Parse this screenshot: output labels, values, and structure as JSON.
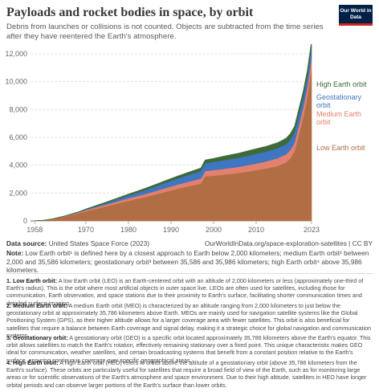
{
  "header": {
    "title": "Payloads and rocket bodies in space, by orbit",
    "subtitle": "Debris from launches or collisions is not counted. Objects are subtracted from the time series after they have reentered the Earth's atmosphere.",
    "logo": "Our World in Data"
  },
  "footer": {
    "source_label": "Data source:",
    "source_text": "United States Space Force (2023)",
    "source_url": "OurWorldInData.org/space-exploration-satellites | CC BY",
    "note_label": "Note:",
    "note_text": "Low Earth orbit¹ is defined here by a closest approach to Earth below 2,000 kilometers; medium Earth orbit² between 2,000 and 35,586 kilometers; geostationary orbit³ between 35,586 and 35,986 kilometers; high Earth orbit⁴ above 35,986 kilometers."
  },
  "footnotes": [
    {
      "label": "1. Low Earth orbit:",
      "text": "A low Earth orbit (LEO) is an Earth-centered orbit with an altitude of 2,000 kilometers or less (approximately one-third of Earth's radius). This is the orbit where most artificial objects in outer space live. LEOs are often used for satellites, including those for communication, Earth observation, and space stations due to their proximity to Earth's surface, facilitating shorter communication times and detailed surface imaging."
    },
    {
      "label": "2. Medium Earth orbit:",
      "text": "A medium Earth orbit (MEO) is characterized by an altitude ranging from 2,000 kilometers to just below the geostationary orbit at approximately 35,786 kilometers above Earth. MEOs are mainly used for navigation satellite systems like the Global Positioning System (GPS), as their higher altitude allows for a larger coverage area with fewer satellites. This orbit is also beneficial for satellites that require a balance between Earth coverage and signal delay, making it a strategic choice for global navigation and communication systems."
    },
    {
      "label": "3. Geostationary orbit:",
      "text": "A geostationary orbit (GEO) is a specific orbit located approximately 35,786 kilometers above the Earth's equator. This orbit allows satellites to match the Earth's rotation, effectively remaining stationary over a fixed point. This unique characteristic makes GEO ideal for communication, weather satellites, and certain broadcasting systems that benefit from a constant position relative to the Earth's surface, ensuring continuous coverage over specific geographical areas."
    },
    {
      "label": "4. High Earth orbit:",
      "text": "A high Earth orbit (HEO) refers to orbits above the altitude of a geostationary orbit (above 35,786 kilometers from the Earth's surface). These orbits are particularly useful for satellites that require a broad field of view of the Earth, such as for monitoring large areas or for scientific observations of the Earth's atmosphere and space environment. Due to their high altitude, satellites in HEO have longer orbital periods and can observe larger portions of the Earth's surface than lower orbits."
    }
  ],
  "chart_data": {
    "type": "area",
    "stacked": true,
    "title": "Payloads and rocket bodies in space, by orbit",
    "xlabel": "",
    "ylabel": "",
    "xlim": [
      1957,
      2023
    ],
    "ylim": [
      0,
      12000
    ],
    "x_ticks": [
      "1958",
      "1970",
      "1980",
      "1990",
      "2000",
      "2010",
      "2023"
    ],
    "y_ticks": [
      "0",
      "2,000",
      "4,000",
      "6,000",
      "8,000",
      "10,000",
      "12,000"
    ],
    "grid": true,
    "legend": "right-inline",
    "x": [
      1957,
      1958,
      1960,
      1962,
      1965,
      1968,
      1970,
      1973,
      1976,
      1980,
      1983,
      1986,
      1989,
      1992,
      1995,
      1997,
      1998,
      2000,
      2003,
      2006,
      2009,
      2012,
      2015,
      2017,
      2018,
      2019,
      2020,
      2021,
      2022,
      2023
    ],
    "series": [
      {
        "name": "Low Earth orbit",
        "color": "#b16e44",
        "values": [
          0,
          10,
          40,
          120,
          300,
          520,
          700,
          920,
          1140,
          1450,
          1650,
          1880,
          2120,
          2350,
          2550,
          2680,
          3200,
          3250,
          3350,
          3450,
          3600,
          3750,
          3950,
          4200,
          4500,
          5000,
          6200,
          7400,
          8900,
          11000
        ]
      },
      {
        "name": "Medium Earth orbit",
        "color": "#e3806e",
        "values": [
          0,
          0,
          5,
          10,
          30,
          60,
          80,
          110,
          140,
          180,
          210,
          240,
          270,
          300,
          340,
          360,
          380,
          400,
          420,
          440,
          470,
          500,
          550,
          580,
          600,
          620,
          650,
          670,
          700,
          730
        ]
      },
      {
        "name": "Geostationary orbit",
        "color": "#3f76c4",
        "values": [
          0,
          0,
          0,
          0,
          10,
          20,
          40,
          80,
          130,
          200,
          260,
          320,
          380,
          440,
          500,
          540,
          560,
          580,
          620,
          650,
          680,
          700,
          720,
          730,
          735,
          740,
          745,
          750,
          755,
          760
        ]
      },
      {
        "name": "High Earth orbit",
        "color": "#3e6a3a",
        "values": [
          0,
          0,
          5,
          10,
          20,
          30,
          40,
          60,
          80,
          100,
          120,
          140,
          160,
          180,
          200,
          220,
          240,
          260,
          300,
          330,
          360,
          380,
          400,
          420,
          430,
          440,
          445,
          450,
          455,
          460
        ]
      }
    ]
  }
}
